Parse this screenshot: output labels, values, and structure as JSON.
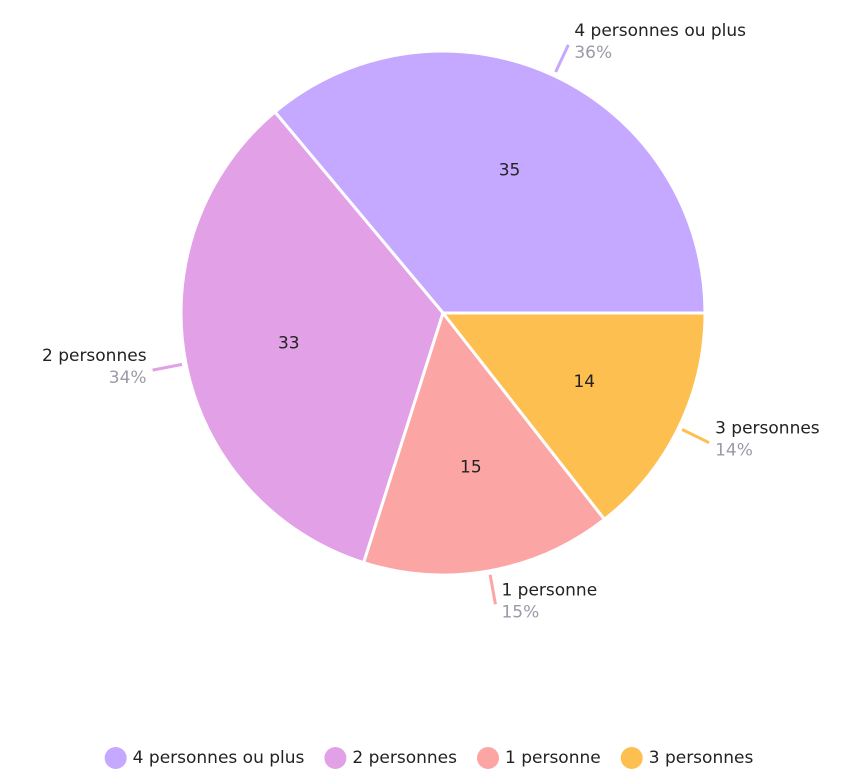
{
  "chart_data": {
    "type": "pie",
    "categories": [
      "4 personnes ou plus",
      "2 personnes",
      "1 personne",
      "3 personnes"
    ],
    "values": [
      35,
      33,
      15,
      14
    ],
    "percent_labels": [
      "36%",
      "34%",
      "15%",
      "14%"
    ],
    "colors": [
      "#c5a8ff",
      "#e2a0e6",
      "#fca5a5",
      "#fdc050"
    ],
    "legend": "bottom"
  }
}
